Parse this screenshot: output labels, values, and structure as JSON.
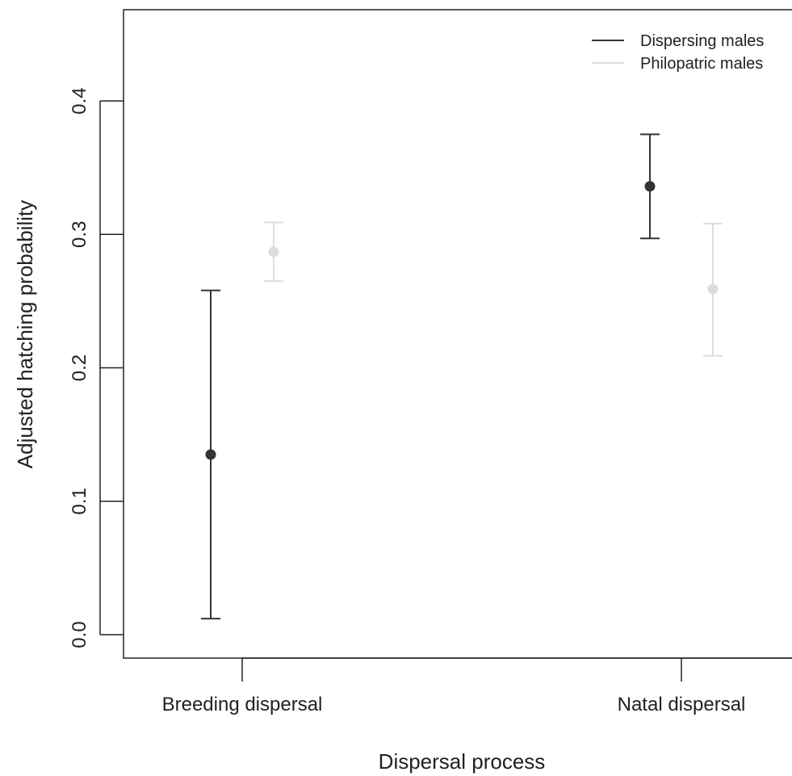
{
  "chart_data": {
    "type": "scatter",
    "title": "",
    "xlabel": "Dispersal process",
    "ylabel": "Adjusted hatching probability",
    "categories": [
      "Breeding dispersal",
      "Natal dispersal"
    ],
    "ylim": [
      -0.018,
      0.468
    ],
    "yticks": [
      "0.0",
      "0.1",
      "0.2",
      "0.3",
      "0.4"
    ],
    "grid": false,
    "legend_position": "top-right",
    "series": [
      {
        "name": "Dispersing males",
        "color": "#333333",
        "values": [
          0.135,
          0.336
        ],
        "lower": [
          0.012,
          0.297
        ],
        "upper": [
          0.258,
          0.375
        ]
      },
      {
        "name": "Philopatric males",
        "color": "#dddddd",
        "values": [
          0.287,
          0.259
        ],
        "lower": [
          0.265,
          0.209
        ],
        "upper": [
          0.309,
          0.308
        ]
      }
    ]
  }
}
